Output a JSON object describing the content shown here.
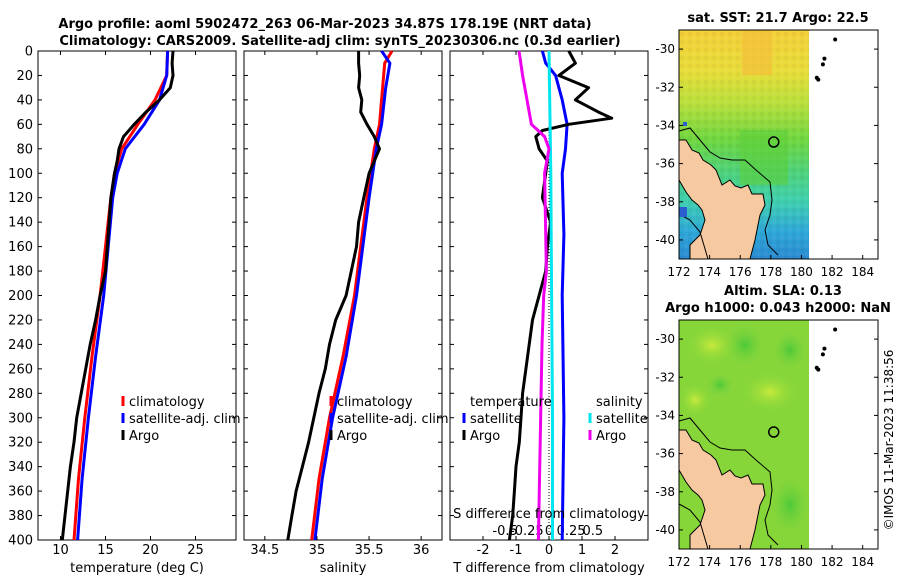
{
  "figure": {
    "title_line1": "Argo profile: aoml 5902472_263 06-Mar-2023 34.87S 178.19E (NRT data)",
    "title_line2": "Climatology: CARS2009. Satellite-adj clim: synTS_20230306.nc (0.3d earlier)",
    "watermark": "©IMOS 11-Mar-2023 11:38:56"
  },
  "colors": {
    "climatology": "#ff0000",
    "satellite": "#0000ff",
    "argo": "#000000",
    "sal_satellite": "#00e5ee",
    "sal_argo": "#ee00ee",
    "land": "#f7c9a0",
    "map_green": "#7fd43a"
  },
  "chart_data": [
    {
      "type": "line",
      "name": "temperature-profile",
      "xlabel": "temperature (deg C)",
      "ylabel": "",
      "xlim": [
        7.5,
        29.5
      ],
      "ylim": [
        400,
        0
      ],
      "x_ticks": [
        10,
        15,
        20,
        25
      ],
      "y_ticks": [
        0,
        20,
        40,
        60,
        80,
        100,
        120,
        140,
        160,
        180,
        200,
        220,
        240,
        260,
        280,
        300,
        320,
        340,
        360,
        380,
        400
      ],
      "legend": [
        "climatology",
        "satellite-adj. clim",
        "Argo"
      ],
      "series": [
        {
          "name": "climatology",
          "color": "#ff0000",
          "depth": [
            0,
            20,
            40,
            60,
            80,
            100,
            120,
            160,
            200,
            250,
            300,
            350,
            400
          ],
          "values": [
            21.9,
            21.8,
            20.5,
            18.6,
            16.8,
            16.0,
            15.6,
            15.0,
            14.4,
            13.5,
            12.7,
            12.0,
            11.5
          ]
        },
        {
          "name": "satellite-adj. clim",
          "color": "#0000ff",
          "depth": [
            0,
            20,
            40,
            60,
            80,
            100,
            120,
            160,
            200,
            250,
            300,
            350,
            400
          ],
          "values": [
            21.9,
            21.8,
            21.0,
            19.3,
            17.2,
            16.3,
            15.8,
            15.3,
            14.8,
            13.9,
            13.1,
            12.4,
            11.9
          ]
        },
        {
          "name": "Argo",
          "color": "#000000",
          "depth": [
            0,
            10,
            20,
            30,
            40,
            50,
            60,
            70,
            80,
            90,
            100,
            120,
            140,
            160,
            180,
            200,
            220,
            240,
            260,
            280,
            300,
            320,
            340,
            360,
            380,
            400
          ],
          "values": [
            22.5,
            22.4,
            22.5,
            22.2,
            21.0,
            19.5,
            18.2,
            17.0,
            16.5,
            16.3,
            16.0,
            15.6,
            15.4,
            15.2,
            15.0,
            14.4,
            13.9,
            13.3,
            12.8,
            12.3,
            11.8,
            11.5,
            11.1,
            10.8,
            10.5,
            10.2
          ]
        }
      ]
    },
    {
      "type": "line",
      "name": "salinity-profile",
      "xlabel": "salinity",
      "xlim": [
        34.3,
        36.2
      ],
      "ylim": [
        400,
        0
      ],
      "x_ticks": [
        34.5,
        35,
        35.5,
        36
      ],
      "legend": [
        "climatology",
        "satellite-adj. clim",
        "Argo"
      ],
      "series": [
        {
          "name": "climatology",
          "color": "#ff0000",
          "depth": [
            0,
            10,
            30,
            60,
            80,
            120,
            160,
            200,
            250,
            300,
            350,
            400
          ],
          "values": [
            35.72,
            35.65,
            35.63,
            35.6,
            35.55,
            35.48,
            35.42,
            35.36,
            35.25,
            35.12,
            35.02,
            34.95
          ]
        },
        {
          "name": "satellite-adj. clim",
          "color": "#0000ff",
          "depth": [
            0,
            10,
            30,
            60,
            80,
            120,
            160,
            200,
            250,
            300,
            350,
            400
          ],
          "values": [
            35.62,
            35.7,
            35.66,
            35.62,
            35.57,
            35.5,
            35.44,
            35.38,
            35.28,
            35.15,
            35.05,
            34.98
          ]
        },
        {
          "name": "Argo",
          "color": "#000000",
          "depth": [
            0,
            10,
            20,
            30,
            40,
            50,
            60,
            70,
            80,
            100,
            120,
            140,
            160,
            180,
            200,
            220,
            240,
            260,
            280,
            300,
            320,
            340,
            360,
            380,
            400
          ],
          "values": [
            35.4,
            35.4,
            35.41,
            35.4,
            35.43,
            35.42,
            35.48,
            35.55,
            35.6,
            35.5,
            35.45,
            35.4,
            35.38,
            35.33,
            35.28,
            35.18,
            35.12,
            35.08,
            35.02,
            34.97,
            34.92,
            34.86,
            34.8,
            34.76,
            34.72
          ]
        }
      ]
    },
    {
      "type": "line",
      "name": "difference-profile",
      "xlabel": "T difference from climatology",
      "xlabel_top": "S difference from climatology",
      "xlim": [
        -3,
        3
      ],
      "ylim": [
        400,
        0
      ],
      "x_ticks": [
        -2,
        -1,
        0,
        1,
        2
      ],
      "x_ticks_top": [
        "-0.5",
        "-0.25",
        "0",
        "0.25",
        "0.5"
      ],
      "legend_left_title": "temperature",
      "legend_left": [
        "satellite",
        "Argo"
      ],
      "legend_right_title": "salinity",
      "legend_right": [
        "satellite",
        "Argo"
      ],
      "series": [
        {
          "name": "T satellite",
          "color": "#0000ff",
          "depth": [
            0,
            10,
            20,
            40,
            60,
            80,
            100,
            150,
            200,
            300,
            400
          ],
          "values": [
            -0.2,
            -0.1,
            0.2,
            0.4,
            0.55,
            0.5,
            0.4,
            0.45,
            0.4,
            0.45,
            0.4
          ]
        },
        {
          "name": "T Argo",
          "color": "#000000",
          "depth": [
            0,
            10,
            20,
            30,
            40,
            50,
            55,
            60,
            65,
            70,
            80,
            90,
            100,
            120,
            140,
            160,
            180,
            200,
            220,
            240,
            260,
            280,
            300,
            320,
            340,
            360,
            380,
            400
          ],
          "values": [
            0.6,
            0.8,
            0.3,
            1.2,
            0.8,
            1.5,
            1.9,
            0.6,
            -0.2,
            -0.4,
            -0.3,
            -0.05,
            -0.1,
            -0.2,
            0.05,
            -0.05,
            -0.1,
            -0.3,
            -0.5,
            -0.6,
            -0.7,
            -0.8,
            -0.85,
            -0.9,
            -1.0,
            -1.05,
            -1.1,
            -1.2
          ]
        },
        {
          "name": "S satellite",
          "color": "#00e5ee",
          "depth": [
            0,
            100,
            200,
            300,
            400
          ],
          "values": [
            0.0,
            0.02,
            0.03,
            0.04,
            0.04
          ]
        },
        {
          "name": "S Argo",
          "color": "#ee00ee",
          "depth": [
            0,
            10,
            20,
            40,
            60,
            70,
            80,
            100,
            140,
            180,
            200,
            240,
            280,
            320,
            360,
            400
          ],
          "values": [
            -0.34,
            -0.32,
            -0.3,
            -0.25,
            -0.2,
            -0.05,
            0.0,
            -0.05,
            -0.04,
            -0.03,
            -0.06,
            -0.08,
            -0.09,
            -0.1,
            -0.11,
            -0.12
          ]
        }
      ]
    },
    {
      "type": "heatmap",
      "name": "sst-map",
      "title": "sat. SST: 21.7 Argo: 22.5",
      "xlim": [
        172,
        185
      ],
      "ylim": [
        -41,
        -29
      ],
      "x_ticks": [
        172,
        174,
        176,
        178,
        180,
        182,
        184
      ],
      "y_ticks": [
        -30,
        -32,
        -34,
        -36,
        -38,
        -40
      ],
      "argo_position": {
        "lon": 178.19,
        "lat": -34.87
      },
      "track_points": [
        {
          "lon": 182.2,
          "lat": -29.5
        },
        {
          "lon": 181.5,
          "lat": -30.5
        },
        {
          "lon": 181.4,
          "lat": -30.8
        },
        {
          "lon": 181.0,
          "lat": -31.5
        },
        {
          "lon": 181.1,
          "lat": -31.6
        }
      ]
    },
    {
      "type": "heatmap",
      "name": "sla-map",
      "title_line1": "Altim. SLA: 0.13",
      "title_line2": "Argo h1000: 0.043 h2000: NaN",
      "xlim": [
        172,
        185
      ],
      "ylim": [
        -41,
        -29
      ],
      "x_ticks": [
        172,
        174,
        176,
        178,
        180,
        182,
        184
      ],
      "y_ticks": [
        -30,
        -32,
        -34,
        -36,
        -38,
        -40
      ],
      "argo_position": {
        "lon": 178.19,
        "lat": -34.87
      },
      "track_points": [
        {
          "lon": 182.2,
          "lat": -29.5
        },
        {
          "lon": 181.5,
          "lat": -30.5
        },
        {
          "lon": 181.4,
          "lat": -30.8
        },
        {
          "lon": 181.0,
          "lat": -31.5
        },
        {
          "lon": 181.1,
          "lat": -31.6
        }
      ]
    }
  ]
}
